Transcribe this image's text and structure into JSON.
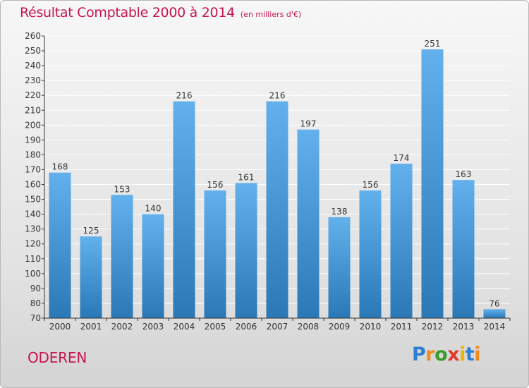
{
  "title": "Résultat Comptable 2000 à 2014",
  "subtitle": "(en milliers d'€)",
  "town": "ODEREN",
  "logo": {
    "letters": [
      "P",
      "r",
      "o",
      "x",
      "i",
      "t",
      "i"
    ],
    "colors": [
      "#2c7fd1",
      "#f08a1b",
      "#3a9c2e",
      "#e03a2a",
      "#f0b400",
      "#2c7fd1",
      "#f08a1b"
    ]
  },
  "colors": {
    "title": "#c7144e",
    "bar_top": "#62b0ec",
    "bar_bottom": "#2a78b6",
    "axis": "#333333",
    "grid": "#ffffff"
  },
  "chart_data": {
    "type": "bar",
    "categories": [
      "2000",
      "2001",
      "2002",
      "2003",
      "2004",
      "2005",
      "2006",
      "2007",
      "2008",
      "2009",
      "2010",
      "2011",
      "2012",
      "2013",
      "2014"
    ],
    "values": [
      168,
      125,
      153,
      140,
      216,
      156,
      161,
      216,
      197,
      138,
      156,
      174,
      251,
      163,
      76
    ],
    "ylim": [
      70,
      260
    ],
    "yticks": [
      70,
      80,
      90,
      100,
      110,
      120,
      130,
      140,
      150,
      160,
      170,
      180,
      190,
      200,
      210,
      220,
      230,
      240,
      250,
      260
    ],
    "grid": true,
    "data_labels": true,
    "legend": "none"
  }
}
